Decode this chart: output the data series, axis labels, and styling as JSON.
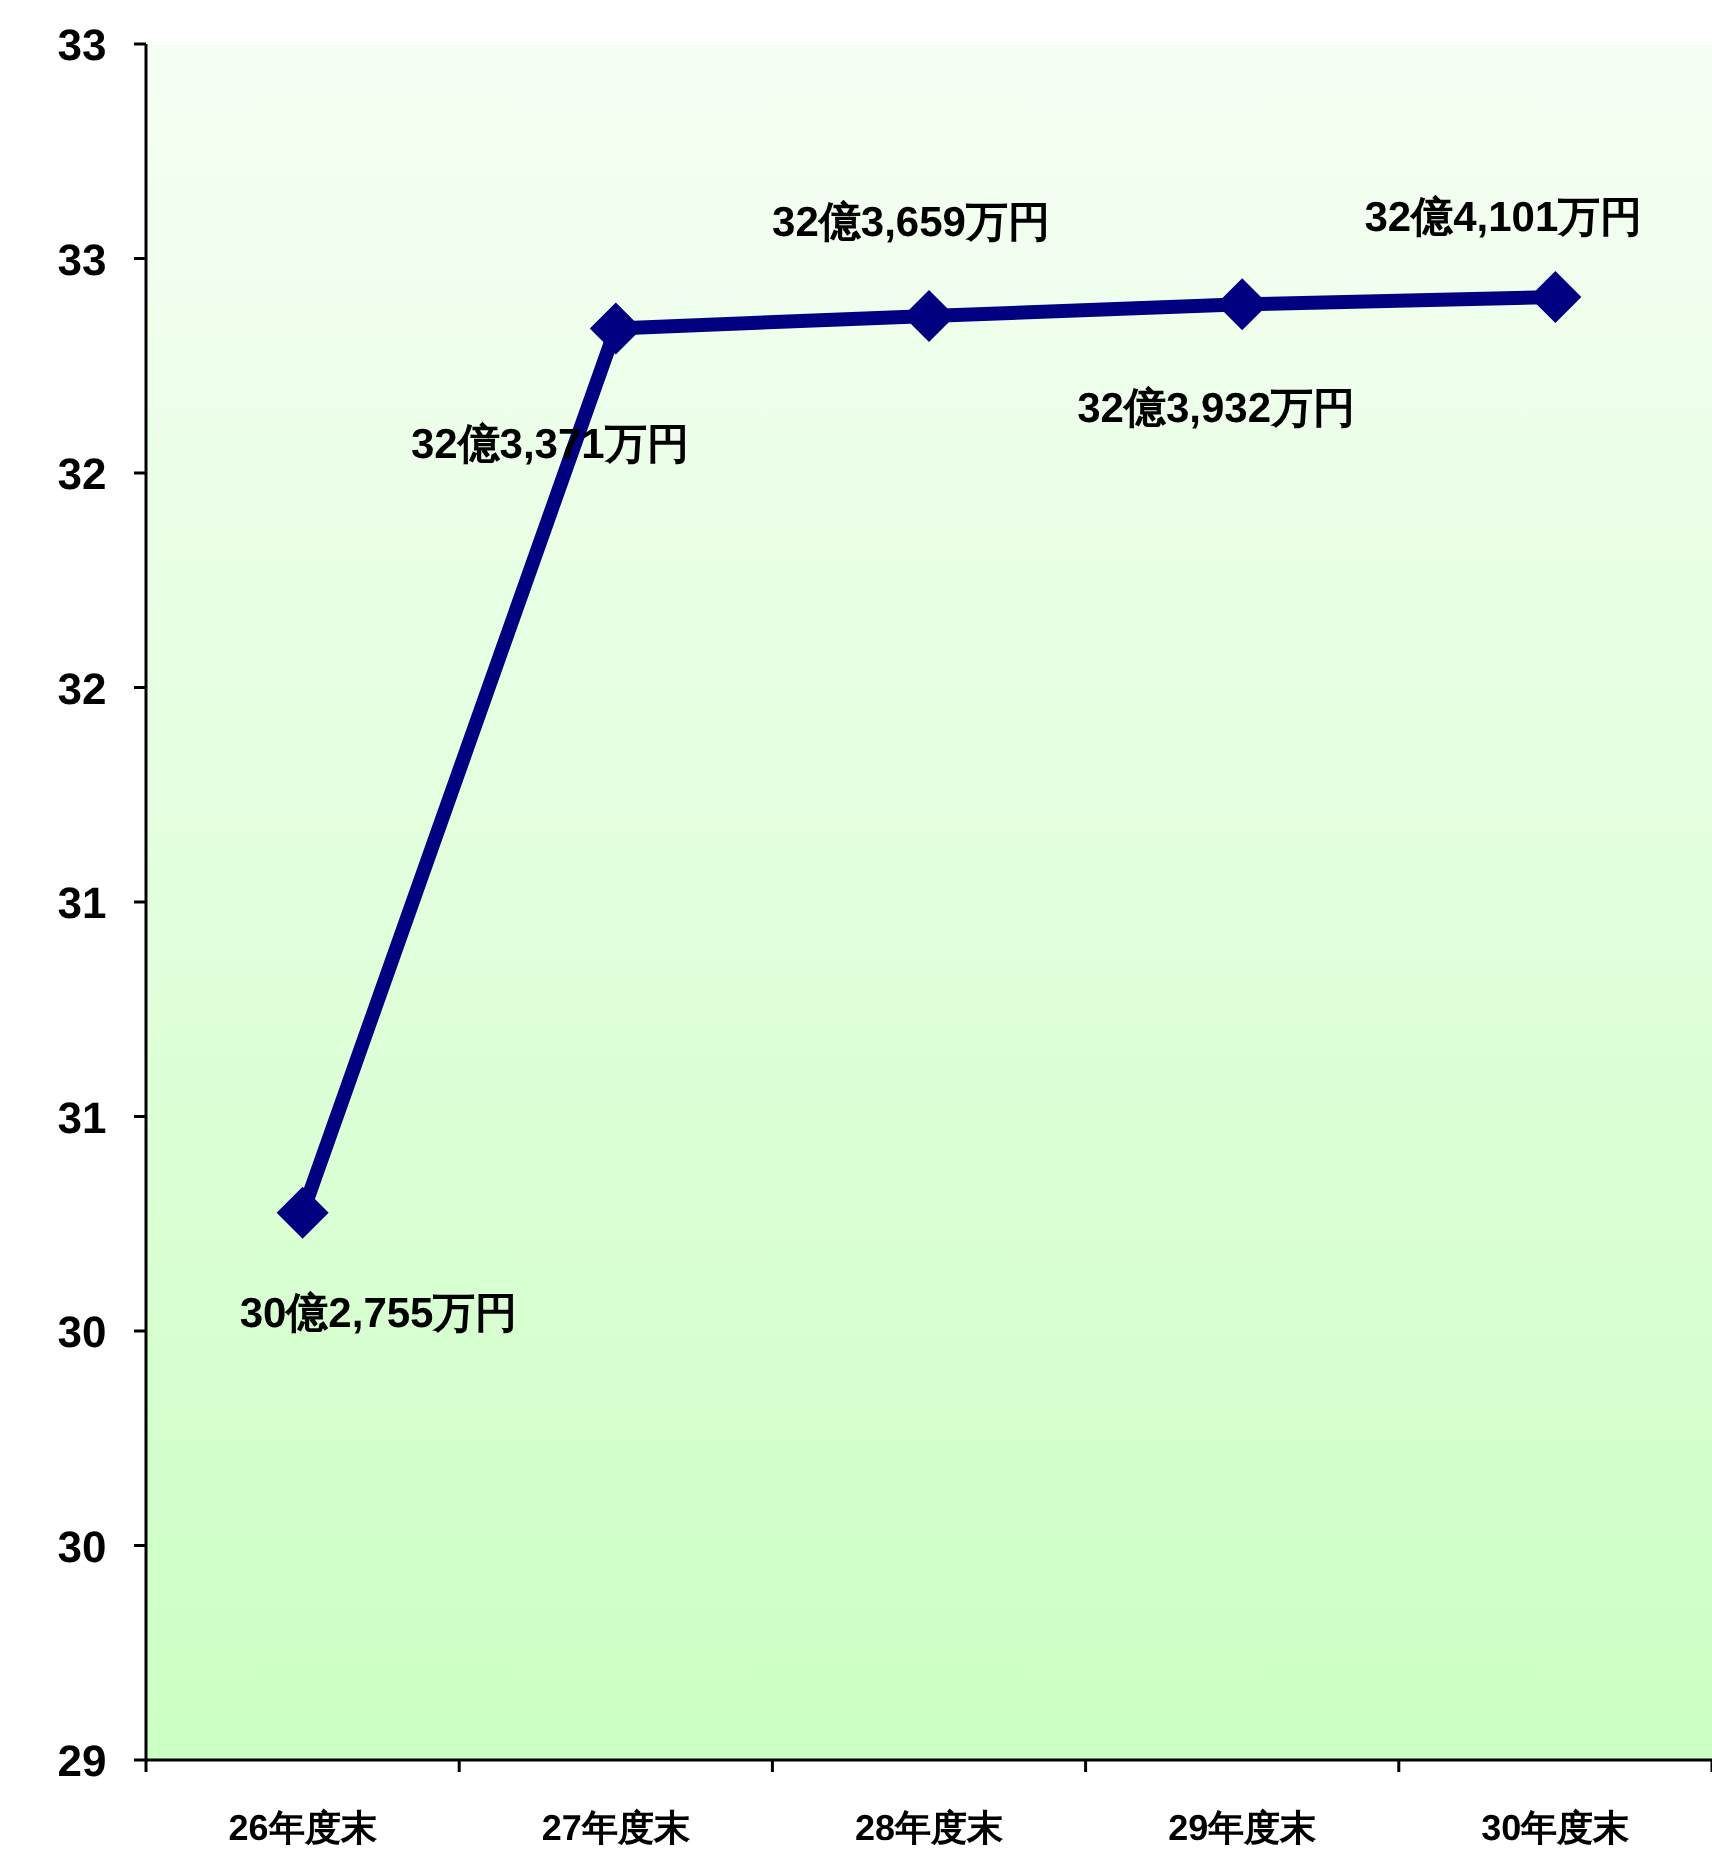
{
  "chart_data": {
    "type": "line",
    "marker": "diamond",
    "categories": [
      "26年度末",
      "27年度末",
      "28年度末",
      "29年度末",
      "30年度末"
    ],
    "series": [
      {
        "color": "#000080",
        "values": [
          30.2755,
          32.3371,
          32.3659,
          32.3932,
          32.4101
        ],
        "value_labels": [
          "30億2,755万円",
          "32億3,371万円",
          "32億3,659万円",
          "32億3,932万円",
          "32億4,101万円"
        ]
      }
    ],
    "ylim": [
      29,
      33
    ],
    "yticks": [
      29,
      {
        "value": 29.5,
        "label": "30"
      },
      30,
      {
        "value": 30.5,
        "label": "31"
      },
      31,
      {
        "value": 31.5,
        "label": "32"
      },
      32,
      {
        "value": 32.5,
        "label": "33"
      },
      33
    ]
  }
}
